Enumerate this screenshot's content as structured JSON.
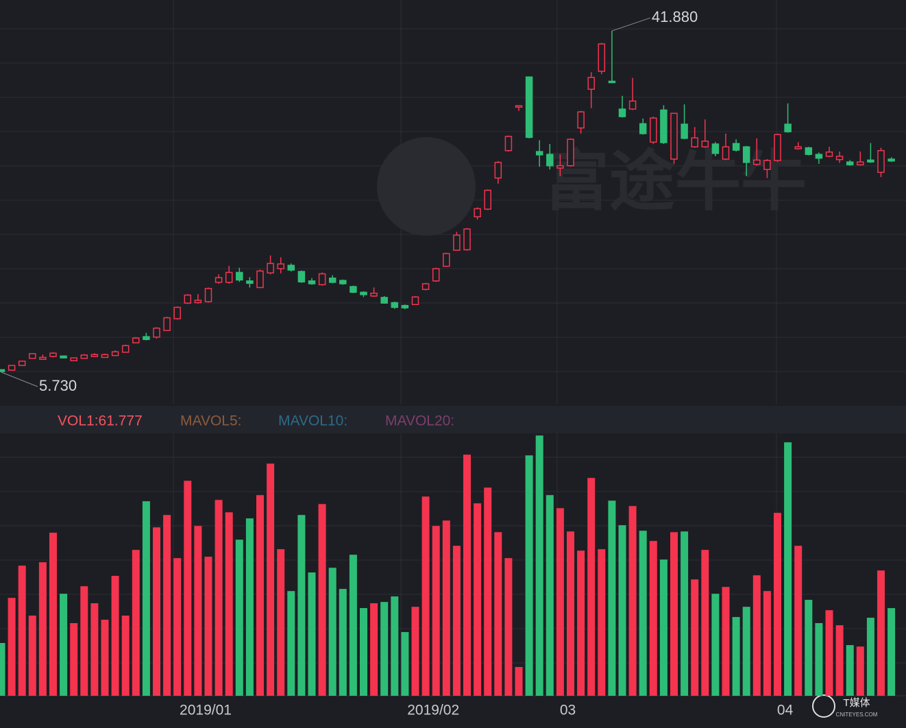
{
  "chart_data": [
    {
      "type": "candlestick",
      "up_color": "#f5344f",
      "down_color": "#2ebd77",
      "ylim": [
        2.32,
        45.15
      ],
      "open": [
        6.0,
        5.95,
        6.45,
        7.2,
        7.1,
        7.4,
        7.45,
        6.95,
        7.2,
        7.4,
        7.3,
        7.5,
        7.85,
        8.85,
        9.5,
        9.45,
        10.15,
        11.4,
        13.05,
        13.1,
        13.2,
        15.25,
        15.25,
        16.3,
        15.4,
        14.7,
        16.25,
        16.7,
        17.05,
        16.4,
        15.4,
        15.0,
        15.7,
        15.45,
        14.8,
        14.2,
        13.8,
        13.65,
        13.1,
        12.8,
        12.9,
        14.5,
        15.4,
        16.95,
        18.65,
        18.7,
        22.2,
        23.0,
        26.3,
        29.2,
        33.8,
        37.0,
        29.1,
        28.8,
        27.35,
        27.6,
        31.6,
        35.7,
        37.6,
        36.55,
        33.6,
        33.6,
        32.05,
        30.1,
        33.5,
        28.3,
        32.0,
        29.6,
        29.6,
        29.9,
        28.3,
        29.95,
        29.6,
        27.75,
        27.2,
        28.15,
        32.0,
        29.4,
        29.5,
        28.8,
        28.6,
        28.25,
        28.0,
        27.7,
        28.2,
        26.9,
        28.3
      ],
      "high": [
        6.05,
        6.5,
        6.95,
        7.75,
        7.6,
        7.85,
        7.5,
        7.3,
        7.65,
        7.75,
        7.7,
        8.05,
        8.65,
        9.45,
        9.9,
        10.5,
        11.6,
        12.7,
        14.0,
        14.0,
        14.7,
        16.1,
        17.0,
        16.8,
        15.8,
        16.6,
        18.1,
        17.9,
        17.25,
        16.5,
        15.7,
        16.3,
        16.0,
        15.55,
        14.9,
        14.3,
        14.7,
        13.8,
        13.2,
        12.9,
        13.8,
        15.2,
        16.8,
        18.4,
        20.6,
        21.0,
        23.2,
        25.1,
        28.1,
        30.8,
        33.95,
        37.05,
        30.3,
        29.9,
        28.8,
        30.5,
        33.4,
        37.5,
        40.6,
        41.88,
        35.0,
        36.9,
        32.6,
        32.8,
        34.0,
        33.2,
        34.1,
        31.7,
        32.5,
        30.1,
        31.0,
        30.4,
        29.7,
        30.5,
        28.3,
        31.0,
        34.2,
        30.1,
        29.6,
        29.0,
        29.6,
        29.1,
        28.2,
        29.1,
        30.0,
        29.5,
        28.5
      ],
      "low": [
        5.73,
        5.9,
        6.4,
        7.15,
        7.05,
        7.3,
        7.2,
        6.9,
        7.15,
        7.35,
        7.25,
        7.45,
        7.8,
        8.8,
        9.1,
        9.3,
        10.1,
        11.3,
        12.95,
        13.0,
        13.1,
        15.1,
        15.1,
        15.3,
        14.7,
        14.65,
        16.1,
        16.2,
        16.4,
        15.2,
        15.0,
        14.9,
        15.15,
        15.0,
        14.1,
        13.7,
        13.7,
        13.0,
        12.45,
        12.4,
        12.85,
        14.4,
        15.3,
        16.9,
        18.6,
        18.6,
        21.9,
        22.9,
        25.7,
        29.1,
        33.4,
        30.5,
        27.5,
        27.2,
        26.5,
        27.5,
        31.0,
        33.7,
        37.3,
        36.35,
        32.7,
        33.5,
        30.9,
        29.9,
        29.9,
        27.8,
        30.4,
        29.5,
        29.5,
        28.6,
        28.2,
        29.1,
        26.5,
        27.6,
        26.3,
        28.0,
        31.1,
        29.3,
        28.7,
        27.8,
        28.5,
        27.9,
        27.6,
        27.6,
        27.9,
        26.4,
        28.0
      ],
      "close": [
        5.8,
        6.45,
        6.9,
        7.7,
        7.3,
        7.75,
        7.25,
        7.25,
        7.55,
        7.6,
        7.6,
        7.9,
        8.55,
        9.35,
        9.2,
        10.4,
        11.5,
        12.6,
        13.9,
        13.35,
        14.6,
        15.75,
        16.3,
        15.5,
        15.15,
        16.45,
        17.25,
        17.2,
        16.55,
        15.3,
        15.1,
        16.15,
        15.25,
        15.1,
        14.2,
        13.95,
        14.1,
        13.05,
        12.6,
        12.55,
        13.7,
        15.1,
        16.7,
        18.3,
        20.25,
        20.9,
        23.05,
        25.0,
        27.95,
        30.7,
        33.95,
        30.6,
        28.75,
        27.6,
        27.6,
        30.4,
        33.3,
        36.95,
        40.5,
        36.4,
        32.8,
        34.45,
        31.0,
        32.65,
        30.05,
        33.15,
        30.5,
        30.55,
        30.2,
        28.9,
        29.6,
        29.25,
        27.95,
        28.2,
        28.15,
        30.9,
        31.2,
        29.6,
        28.8,
        28.4,
        29.05,
        28.6,
        27.7,
        28.0,
        28.0,
        29.2,
        28.1
      ],
      "annotations": [
        {
          "value": 41.88,
          "label": "41.880"
        },
        {
          "value": 5.73,
          "label": "5.730"
        }
      ],
      "watermark": "富途牛牛"
    },
    {
      "type": "bar",
      "ylim": [
        0,
        185
      ],
      "legend": [
        {
          "label": "VOL1:61.777",
          "color": "#f2545f"
        },
        {
          "label": "MAVOL5:",
          "color": "#8c5b3c"
        },
        {
          "label": "MAVOL10:",
          "color": "#2d6a88"
        },
        {
          "label": "MAVOL20:",
          "color": "#7b3f6c"
        }
      ],
      "categories": [
        null,
        null,
        null,
        null,
        null,
        null,
        null,
        null,
        null,
        null,
        null,
        null,
        null,
        null,
        null,
        null,
        null,
        null,
        null,
        null,
        "2019/01",
        null,
        null,
        null,
        null,
        null,
        null,
        null,
        null,
        null,
        null,
        null,
        null,
        null,
        null,
        null,
        null,
        null,
        null,
        null,
        null,
        null,
        "2019/02",
        null,
        null,
        null,
        null,
        null,
        null,
        null,
        null,
        null,
        null,
        null,
        null,
        "03",
        null,
        null,
        null,
        null,
        null,
        null,
        null,
        null,
        null,
        null,
        null,
        null,
        null,
        null,
        null,
        null,
        null,
        null,
        null,
        null,
        "04",
        null,
        null,
        null,
        null,
        null,
        null,
        null,
        null,
        null,
        null
      ],
      "values": [
        37.2,
        69.0,
        91.7,
        56.5,
        94.1,
        114.9,
        71.9,
        51.2,
        77.2,
        65.2,
        53.6,
        84.5,
        56.5,
        102.8,
        137.1,
        118.7,
        127.4,
        97.0,
        151.5,
        119.7,
        98.0,
        138.0,
        129.3,
        110.0,
        125.0,
        141.4,
        163.6,
        103.3,
        73.8,
        127.4,
        86.9,
        135.1,
        90.2,
        75.3,
        99.4,
        61.8,
        65.2,
        66.1,
        70.0,
        44.9,
        62.7,
        140.4,
        119.7,
        123.5,
        105.7,
        169.9,
        135.6,
        146.7,
        115.3,
        97.0,
        20.3,
        169.4,
        183.4,
        141.4,
        132.2,
        115.8,
        102.3,
        153.5,
        103.3,
        137.5,
        120.2,
        133.7,
        116.3,
        109.1,
        96.0,
        115.3,
        115.8,
        82.0,
        102.8,
        71.9,
        76.7,
        55.5,
        62.7,
        84.9,
        73.8,
        128.9,
        178.6,
        105.7,
        67.6,
        51.2,
        60.3,
        49.7,
        35.7,
        34.7,
        55.0,
        88.3,
        61.777
      ],
      "logo_text": "T媒体",
      "logo_sub": "CNITEYES.COM"
    }
  ]
}
